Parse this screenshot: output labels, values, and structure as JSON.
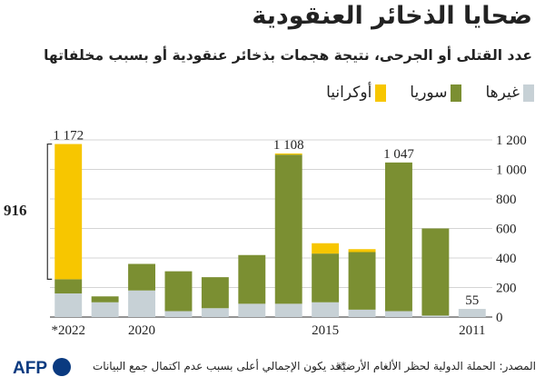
{
  "title": "ضحايا الذخائر العنقودية",
  "subtitle": "عدد القتلى أو الجرحى، نتيجة هجمات بذخائر عنقودية أو بسبب مخلفاتها",
  "legend": [
    {
      "label": "أوكرانيا",
      "color": "#f7c600"
    },
    {
      "label": "سوريا",
      "color": "#7b8f32"
    },
    {
      "label": "غيرها",
      "color": "#c7d1d6"
    }
  ],
  "chart_data": {
    "type": "bar",
    "stacked": true,
    "categories": [
      "2022*",
      "2021",
      "2020",
      "2019",
      "2018",
      "2017",
      "2016",
      "2015",
      "2014",
      "2013",
      "2012",
      "2011"
    ],
    "x_tick_labels": [
      {
        "category": "2022*",
        "label": "*2022"
      },
      {
        "category": "2020",
        "label": "2020"
      },
      {
        "category": "2015",
        "label": "2015"
      },
      {
        "category": "2011",
        "label": "2011"
      }
    ],
    "series": [
      {
        "name": "غيرها",
        "color": "#c7d1d6",
        "values": [
          160,
          100,
          180,
          40,
          60,
          90,
          90,
          100,
          50,
          40,
          10,
          55
        ]
      },
      {
        "name": "سوريا",
        "color": "#7b8f32",
        "values": [
          96,
          40,
          180,
          270,
          210,
          330,
          1010,
          330,
          390,
          1007,
          590,
          0
        ]
      },
      {
        "name": "أوكرانيا",
        "color": "#f7c600",
        "values": [
          916,
          0,
          0,
          0,
          0,
          0,
          8,
          70,
          20,
          0,
          0,
          0
        ]
      }
    ],
    "data_labels": [
      {
        "category": "2022*",
        "label": "1 172"
      },
      {
        "category": "2016",
        "label": "1 108"
      },
      {
        "category": "2013",
        "label": "1 047"
      },
      {
        "category": "2011",
        "label": "55"
      }
    ],
    "bracket": {
      "category": "2022*",
      "series": "أوكرانيا",
      "label": "916"
    },
    "y_ticks": [
      {
        "value": 0,
        "label": "0"
      },
      {
        "value": 200,
        "label": "200"
      },
      {
        "value": 400,
        "label": "400"
      },
      {
        "value": 600,
        "label": "600"
      },
      {
        "value": 800,
        "label": "800"
      },
      {
        "value": 1000,
        "label": "1 000"
      },
      {
        "value": 1200,
        "label": "1 200"
      }
    ],
    "ylim": [
      0,
      1200
    ],
    "y_axis_side": "right",
    "grid": true
  },
  "footer": {
    "source": "المصدر: الحملة الدولية لحظر الألغام الأرضية",
    "note": "*قد يكون الإجمالي أعلى بسبب عدم اكتمال جمع البيانات",
    "logo_text": "AFP"
  }
}
